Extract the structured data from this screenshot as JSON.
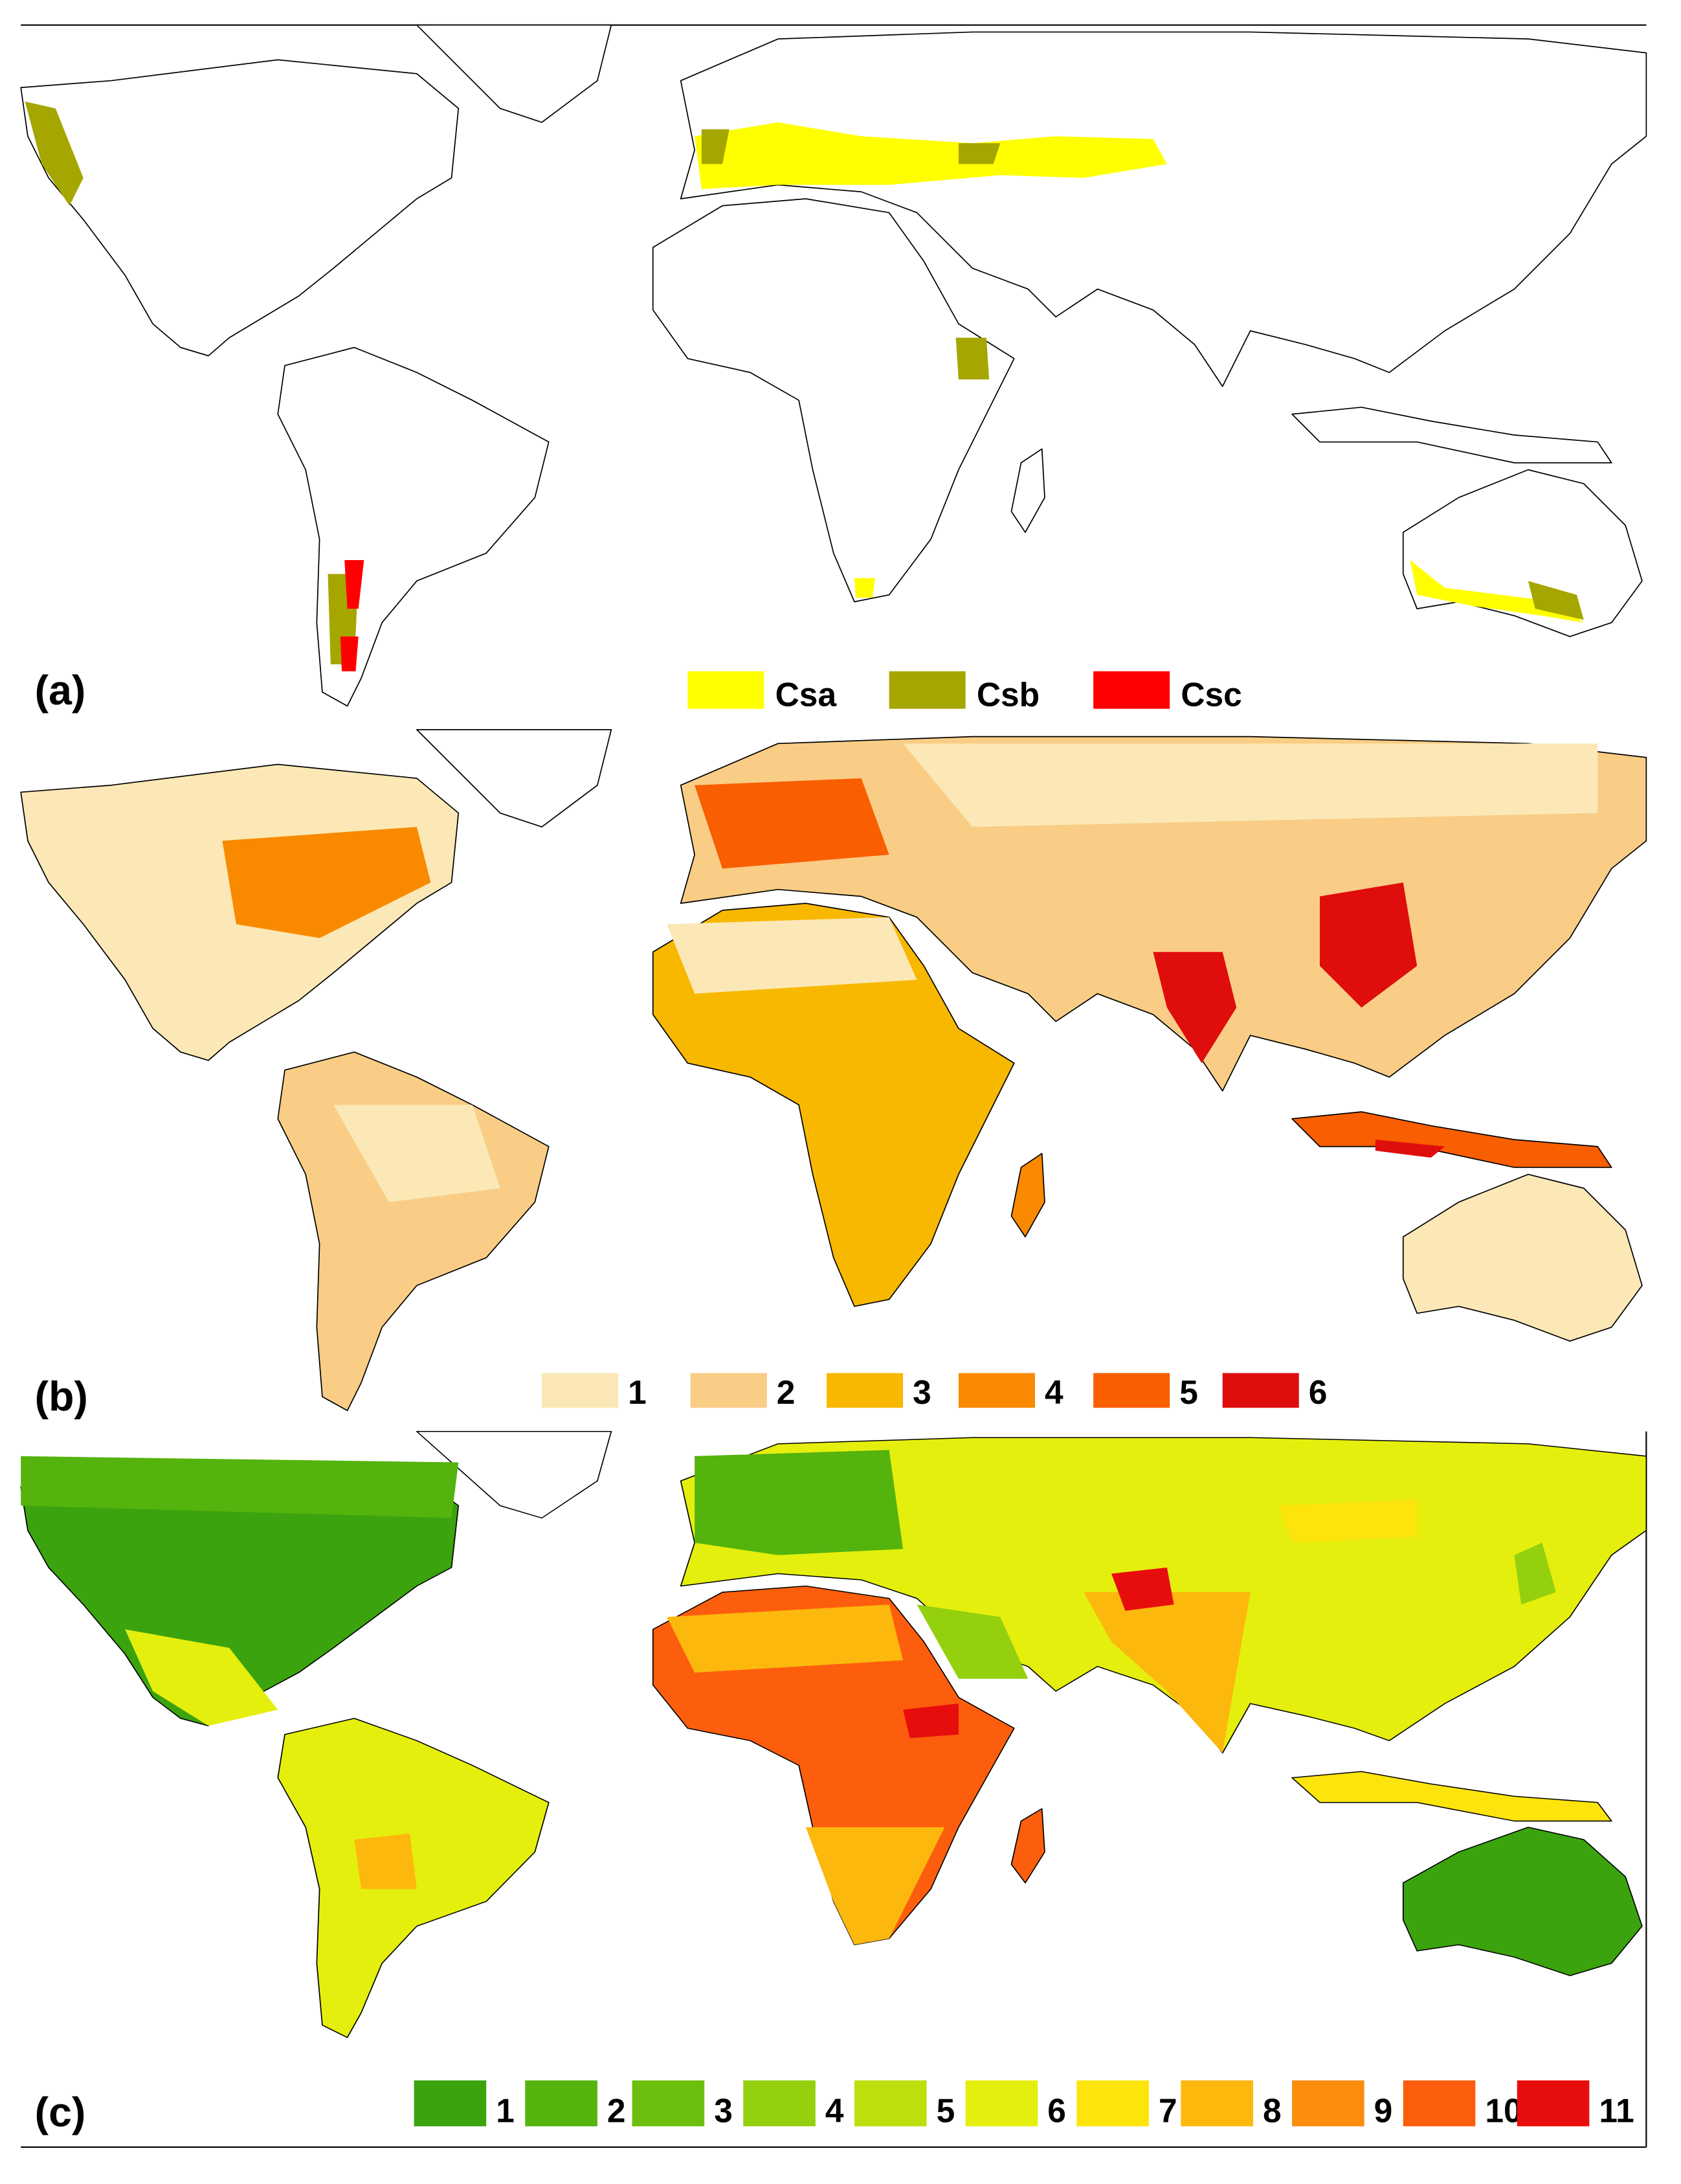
{
  "panels": [
    {
      "label": "(a)",
      "legend": [
        {
          "text": "Csa",
          "color": "#ffff00"
        },
        {
          "text": "Csb",
          "color": "#a6a600"
        },
        {
          "text": "Csc",
          "color": "#ff0000"
        }
      ]
    },
    {
      "label": "(b)",
      "legend": [
        {
          "text": "1",
          "color": "#fbe8b6"
        },
        {
          "text": "2",
          "color": "#f9cd85"
        },
        {
          "text": "3",
          "color": "#f9b800"
        },
        {
          "text": "4",
          "color": "#f98a00"
        },
        {
          "text": "5",
          "color": "#f95e00"
        },
        {
          "text": "6",
          "color": "#e00d0d"
        }
      ]
    },
    {
      "label": "(c)",
      "legend": [
        {
          "text": "1",
          "color": "#3aa30d"
        },
        {
          "text": "2",
          "color": "#55b30d"
        },
        {
          "text": "3",
          "color": "#6cc00d"
        },
        {
          "text": "4",
          "color": "#94d00d"
        },
        {
          "text": "5",
          "color": "#bddf0d"
        },
        {
          "text": "6",
          "color": "#e5ef0d"
        },
        {
          "text": "7",
          "color": "#fde40d"
        },
        {
          "text": "8",
          "color": "#fdb80d"
        },
        {
          "text": "9",
          "color": "#fd8d0d"
        },
        {
          "text": "10",
          "color": "#fd5e0d"
        },
        {
          "text": "11",
          "color": "#e80d0d"
        }
      ]
    }
  ]
}
